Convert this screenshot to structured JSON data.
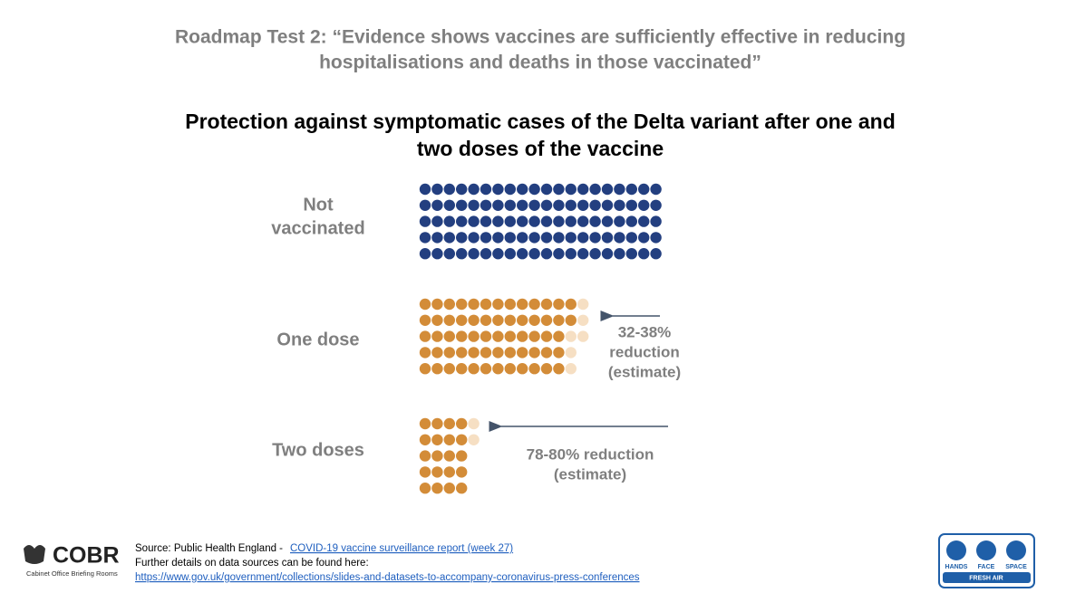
{
  "header": {
    "title": [
      "Roadmap Test 2: “Evidence shows vaccines are sufficiently effective in reducing",
      "hospitalisations and deaths in those vaccinated”"
    ]
  },
  "chart": {
    "title": [
      "Protection against symptomatic cases of the Delta variant after one and",
      "two doses of the vaccine"
    ],
    "groups": [
      {
        "label": [
          "Not",
          "vaccinated"
        ],
        "solid_color": "#233f80",
        "faint_color": "#f6dfc3",
        "rows": [
          {
            "solid": 20,
            "faint": 0
          },
          {
            "solid": 20,
            "faint": 0
          },
          {
            "solid": 20,
            "faint": 0
          },
          {
            "solid": 20,
            "faint": 0
          },
          {
            "solid": 20,
            "faint": 0
          }
        ]
      },
      {
        "label": [
          "One dose"
        ],
        "solid_color": "#d38c38",
        "faint_color": "#f6dfc3",
        "rows": [
          {
            "solid": 13,
            "faint": 1
          },
          {
            "solid": 13,
            "faint": 1
          },
          {
            "solid": 12,
            "faint": 2
          },
          {
            "solid": 12,
            "faint": 1
          },
          {
            "solid": 12,
            "faint": 1
          }
        ],
        "annotation": [
          "32-38%",
          "reduction",
          "(estimate)"
        ]
      },
      {
        "label": [
          "Two doses"
        ],
        "solid_color": "#d38c38",
        "faint_color": "#f6dfc3",
        "rows": [
          {
            "solid": 4,
            "faint": 1
          },
          {
            "solid": 4,
            "faint": 1
          },
          {
            "solid": 4,
            "faint": 0
          },
          {
            "solid": 4,
            "faint": 0
          },
          {
            "solid": 4,
            "faint": 0
          }
        ],
        "annotation": [
          "78-80% reduction",
          "(estimate)"
        ]
      }
    ]
  },
  "footer": {
    "source_prefix": "Source: Public Health England - ",
    "source_link": "COVID-19 vaccine surveillance report (week 27)",
    "further": "Further details on data sources can be found here:",
    "url": "https://www.gov.uk/government/collections/slides-and-datasets-to-accompany-coronavirus-press-conferences",
    "cobr": "COBR",
    "cobr_sub": "Cabinet Office Briefing Rooms",
    "badge": [
      "HANDS",
      "FACE",
      "SPACE"
    ],
    "badge_sub": "FRESH AIR"
  }
}
